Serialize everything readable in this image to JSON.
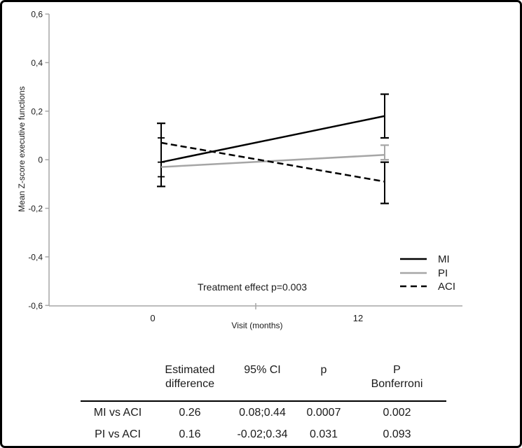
{
  "figure": {
    "border_color": "#000000",
    "background": "#ffffff"
  },
  "colors": {
    "axis": "#a6a6a6",
    "text": "#1a1a1a",
    "mi_black": "#000000",
    "pi_gray": "#a6a6a6"
  },
  "chart_data": {
    "type": "line",
    "title": "",
    "xlabel": "Visit (months)",
    "ylabel": "Mean Z-score executive functions",
    "x": [
      0,
      12
    ],
    "xtick_labels": [
      "0",
      "12"
    ],
    "ylim": [
      -0.6,
      0.6
    ],
    "yticks": [
      0.6,
      0.4,
      0.2,
      0,
      -0.2,
      -0.4,
      -0.6
    ],
    "ytick_labels": [
      "0,6",
      "0,4",
      "0,2",
      "0",
      "-0,2",
      "-0,4",
      "-0,6"
    ],
    "grid": false,
    "legend_position": "lower right",
    "annotation": "Treatment effect p=0.003",
    "series": [
      {
        "name": "MI",
        "color": "#000000",
        "style": "solid",
        "values": [
          -0.01,
          0.18
        ],
        "ci_12": [
          0.09,
          0.27
        ]
      },
      {
        "name": "PI",
        "color": "#a6a6a6",
        "style": "solid",
        "values": [
          -0.03,
          0.02
        ],
        "ci_12": [
          0.0,
          0.06
        ]
      },
      {
        "name": "ACI",
        "color": "#000000",
        "style": "dashed",
        "values": [
          0.07,
          -0.09
        ],
        "ci_12": [
          -0.18,
          -0.01
        ]
      }
    ],
    "baseline_errorbar": {
      "x": 0,
      "top": 0.15,
      "bottom": -0.11,
      "inner_caps": [
        0.09,
        -0.01,
        -0.07
      ],
      "note": "overlapping error bars of the three groups at visit 0"
    }
  },
  "table": {
    "headers": [
      "",
      "Estimated\ndifference",
      "95% CI",
      "p",
      "P\nBonferroni"
    ],
    "rows": [
      [
        "MI vs ACI",
        "0.26",
        "0.08;0.44",
        "0.0007",
        "0.002"
      ],
      [
        "PI vs ACI",
        "0.16",
        "-0.02;0.34",
        "0.031",
        "0.093"
      ]
    ]
  }
}
